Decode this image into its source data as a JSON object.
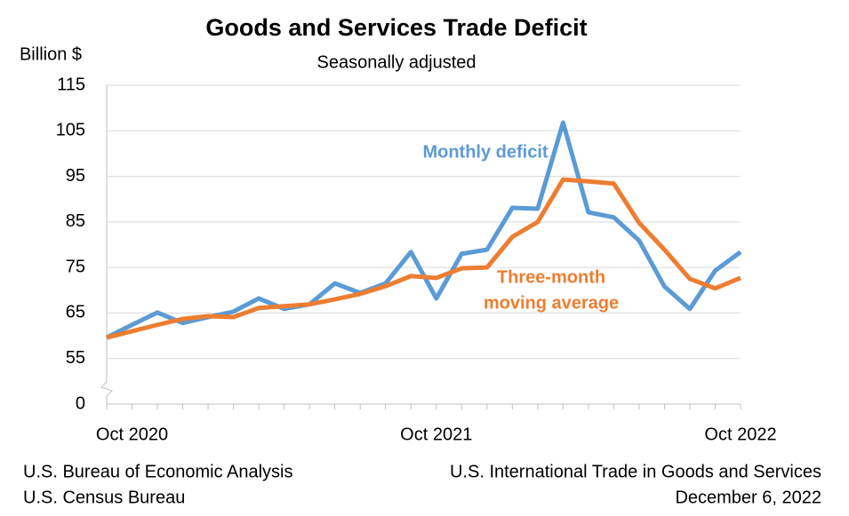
{
  "chart_data": {
    "type": "line",
    "title": "Goods and Services Trade Deficit",
    "subtitle": "Seasonally adjusted",
    "y_label": "Billion $",
    "x": [
      null,
      "Oct 2020",
      null,
      null,
      null,
      null,
      null,
      null,
      null,
      null,
      null,
      null,
      null,
      "Oct 2021",
      null,
      null,
      null,
      null,
      null,
      null,
      null,
      null,
      null,
      null,
      null,
      "Oct 2022"
    ],
    "series": [
      {
        "name": "Monthly deficit",
        "color": "#5b9bd5",
        "values": [
          59.6,
          62.4,
          65.1,
          62.8,
          64.1,
          65.3,
          68.2,
          65.9,
          66.9,
          71.5,
          69.4,
          71.5,
          78.4,
          68.2,
          78.0,
          78.9,
          88.1,
          87.9,
          106.8,
          87.1,
          86.0,
          80.9,
          70.8,
          65.9,
          74.3,
          78.4
        ]
      },
      {
        "name": [
          "Three-month",
          "moving average"
        ],
        "color": "#ed7d31",
        "values": [
          59.6,
          61.0,
          62.4,
          63.7,
          64.3,
          64.1,
          66.1,
          66.5,
          66.9,
          68.0,
          69.2,
          70.9,
          73.1,
          72.7,
          74.8,
          75.0,
          81.7,
          85.0,
          94.3,
          93.9,
          93.4,
          84.8,
          78.9,
          72.5,
          70.4,
          72.7
        ]
      }
    ],
    "ylim": [
      45,
      115
    ],
    "yticks": [
      55,
      65,
      75,
      85,
      95,
      105,
      115
    ],
    "y_axis_break_label": 0,
    "grid": true,
    "footer_left": [
      "U.S. Bureau of Economic Analysis",
      "U.S. Census Bureau"
    ],
    "footer_right": [
      "U.S. International Trade in Goods and Services",
      "December 6, 2022"
    ]
  }
}
